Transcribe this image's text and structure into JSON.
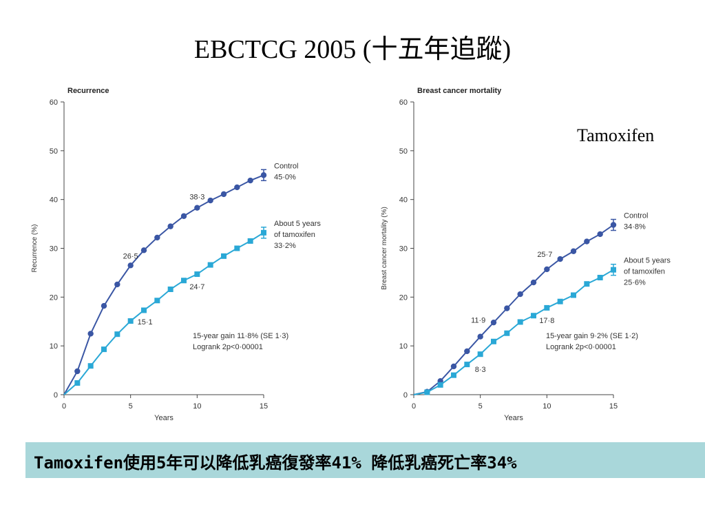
{
  "slide": {
    "title": "EBCTCG 2005 (十五年追蹤)",
    "side_label": "Tamoxifen",
    "footer": "Tamoxifen使用5年可以降低乳癌復發率41% 降低乳癌死亡率34%"
  },
  "colors": {
    "control": "#3a56a4",
    "tamoxifen": "#2aa8d6",
    "axis": "#444444",
    "footer_bg": "#a9d7da"
  },
  "chart_data": [
    {
      "type": "line",
      "title": "Recurrence",
      "xlabel": "Years",
      "ylabel": "Recurrence (%)",
      "xlim": [
        0,
        15
      ],
      "ylim": [
        0,
        60
      ],
      "xticks": [
        "0",
        "5",
        "10",
        "15"
      ],
      "yticks": [
        "0",
        "10",
        "20",
        "30",
        "40",
        "50",
        "60"
      ],
      "grid": false,
      "series": [
        {
          "key": "control",
          "label_lines": [
            "Control",
            "45·0%"
          ],
          "x": [
            0,
            1,
            2,
            3,
            4,
            5,
            6,
            7,
            8,
            9,
            10,
            11,
            12,
            13,
            14,
            15
          ],
          "y": [
            0,
            4.8,
            12.5,
            18.2,
            22.6,
            26.5,
            29.6,
            32.2,
            34.5,
            36.6,
            38.3,
            39.8,
            41.1,
            42.5,
            43.9,
            45.0
          ]
        },
        {
          "key": "tamoxifen",
          "label_lines": [
            "About 5 years",
            "of tamoxifen",
            "33·2%"
          ],
          "x": [
            0,
            1,
            2,
            3,
            4,
            5,
            6,
            7,
            8,
            9,
            10,
            11,
            12,
            13,
            14,
            15
          ],
          "y": [
            0,
            2.4,
            5.9,
            9.3,
            12.4,
            15.1,
            17.3,
            19.3,
            21.6,
            23.4,
            24.7,
            26.6,
            28.4,
            30.0,
            31.5,
            33.2
          ]
        }
      ],
      "point_labels": [
        {
          "series": "control",
          "x": 5,
          "text": "26·5"
        },
        {
          "series": "control",
          "x": 10,
          "text": "38·3"
        },
        {
          "series": "tamoxifen",
          "x": 5,
          "text": "15·1"
        },
        {
          "series": "tamoxifen",
          "x": 10,
          "text": "24·7"
        }
      ],
      "note_lines": [
        "15-year gain 11·8% (SE 1·3)",
        "Logrank 2p<0·00001"
      ]
    },
    {
      "type": "line",
      "title": "Breast cancer mortality",
      "xlabel": "Years",
      "ylabel": "Breast cancer mortality (%)",
      "xlim": [
        0,
        15
      ],
      "ylim": [
        0,
        60
      ],
      "xticks": [
        "0",
        "5",
        "10",
        "15"
      ],
      "yticks": [
        "0",
        "10",
        "20",
        "30",
        "40",
        "50",
        "60"
      ],
      "grid": false,
      "series": [
        {
          "key": "control",
          "label_lines": [
            "Control",
            "34·8%"
          ],
          "x": [
            0,
            1,
            2,
            3,
            4,
            5,
            6,
            7,
            8,
            9,
            10,
            11,
            12,
            13,
            14,
            15
          ],
          "y": [
            0,
            0.6,
            2.8,
            5.8,
            8.9,
            11.9,
            14.8,
            17.7,
            20.6,
            23.0,
            25.7,
            27.8,
            29.4,
            31.4,
            32.9,
            34.8
          ]
        },
        {
          "key": "tamoxifen",
          "label_lines": [
            "About 5 years",
            "of tamoxifen",
            "25·6%"
          ],
          "x": [
            0,
            1,
            2,
            3,
            4,
            5,
            6,
            7,
            8,
            9,
            10,
            11,
            12,
            13,
            14,
            15
          ],
          "y": [
            0,
            0.5,
            2.0,
            4.0,
            6.2,
            8.3,
            10.9,
            12.6,
            14.9,
            16.2,
            17.8,
            19.1,
            20.4,
            22.7,
            24.0,
            25.6
          ]
        }
      ],
      "point_labels": [
        {
          "series": "control",
          "x": 5,
          "text": "11·9"
        },
        {
          "series": "control",
          "x": 10,
          "text": "25·7"
        },
        {
          "series": "tamoxifen",
          "x": 5,
          "text": "8·3"
        },
        {
          "series": "tamoxifen",
          "x": 10,
          "text": "17·8"
        }
      ],
      "note_lines": [
        "15-year gain 9·2% (SE 1·2)",
        "Logrank 2p<0·00001"
      ]
    }
  ]
}
